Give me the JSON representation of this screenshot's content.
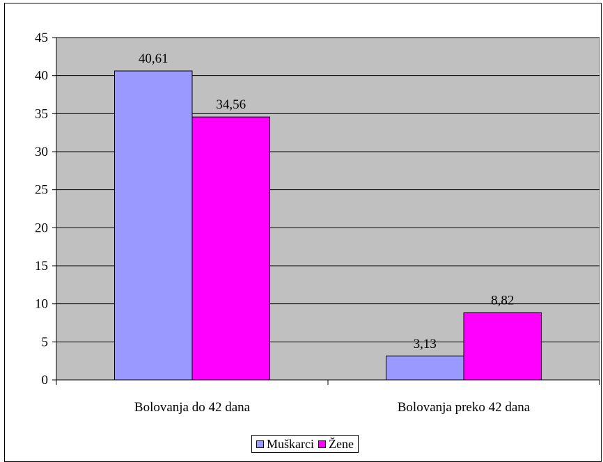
{
  "chart_data": {
    "type": "bar",
    "title": "",
    "xlabel": "",
    "ylabel": "",
    "categories": [
      "Bolovanja do 42 dana",
      "Bolovanja preko 42 dana"
    ],
    "series": [
      {
        "name": "Muškarci",
        "values": [
          40.61,
          3.13
        ],
        "labels": [
          "40,61",
          "3,13"
        ],
        "color": "#9999ff"
      },
      {
        "name": "Žene",
        "values": [
          34.56,
          8.82
        ],
        "labels": [
          "34,56",
          "8,82"
        ],
        "color": "#ff00ff"
      }
    ],
    "ylim": [
      0,
      45
    ],
    "yticks": [
      0,
      5,
      10,
      15,
      20,
      25,
      30,
      35,
      40,
      45
    ],
    "grid": true,
    "plot_background": "#c0c0c0",
    "legend_position": "bottom"
  }
}
